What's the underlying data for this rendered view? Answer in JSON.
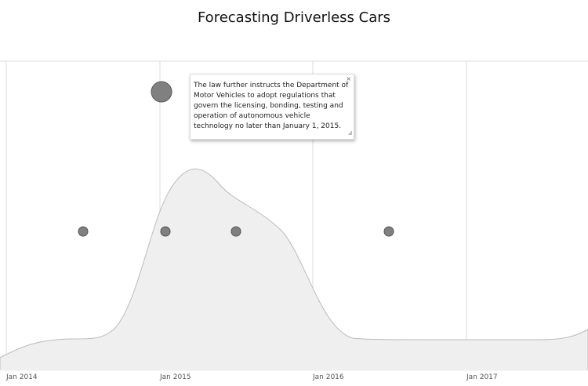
{
  "title": "Forecasting Driverless Cars",
  "axis": {
    "ticks": [
      "Jan 2014",
      "Jan 2015",
      "Jan 2016",
      "Jan 2017"
    ]
  },
  "tooltip": {
    "text": "The law further instructs the Department of Motor Vehicles to adopt regulations that govern the licensing, bonding, testing and operation of autonomous vehicle technology no later than January 1, 2015.",
    "close_label": "×"
  },
  "colors": {
    "area": "#efefef",
    "dot": "#808080",
    "grid": "#dddddd"
  }
}
